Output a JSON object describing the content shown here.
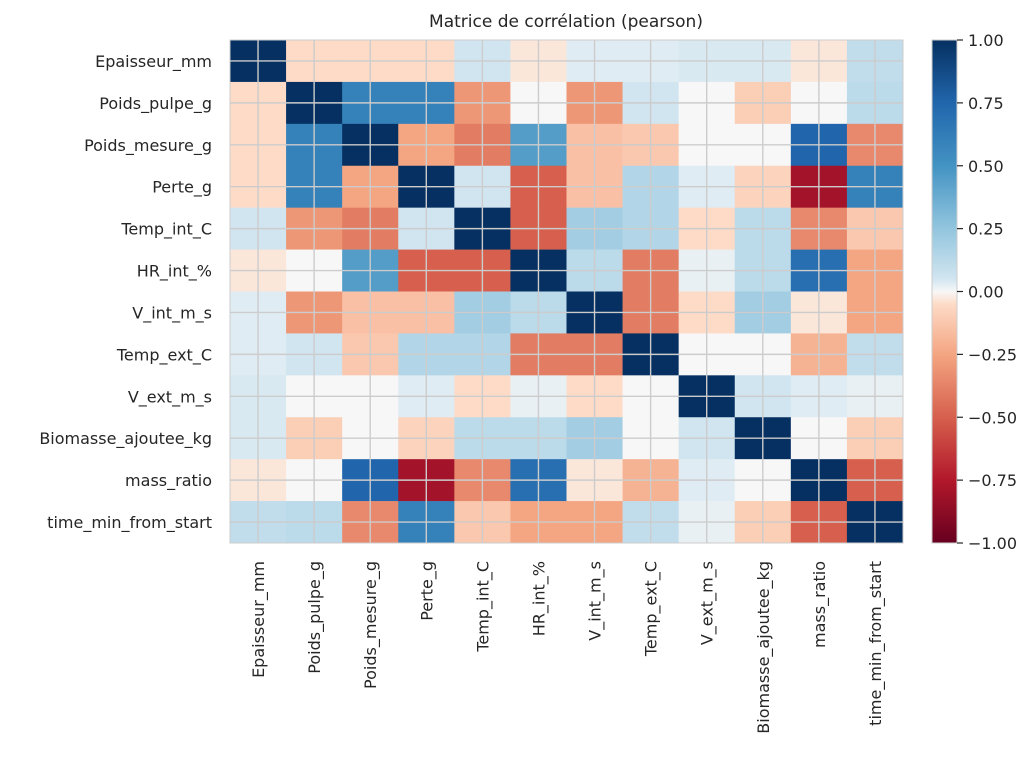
{
  "chart_data": {
    "type": "heatmap",
    "title": "Matrice de corrélation (pearson)",
    "variables": [
      "Epaisseur_mm",
      "Poids_pulpe_g",
      "Poids_mesure_g",
      "Perte_g",
      "Temp_int_C",
      "HR_int_%",
      "V_int_m_s",
      "Temp_ext_C",
      "V_ext_m_s",
      "Biomasse_ajoutee_kg",
      "mass_ratio",
      "time_min_from_start"
    ],
    "matrix": [
      [
        1.0,
        -0.05,
        -0.05,
        -0.05,
        0.05,
        -0.03,
        0.03,
        0.03,
        0.04,
        0.04,
        -0.03,
        0.1
      ],
      [
        -0.05,
        1.0,
        0.6,
        0.6,
        -0.3,
        0.0,
        -0.3,
        0.05,
        0.0,
        -0.1,
        0.0,
        0.12
      ],
      [
        -0.05,
        0.6,
        1.0,
        -0.25,
        -0.4,
        0.45,
        -0.15,
        -0.12,
        0.0,
        0.0,
        0.75,
        -0.35
      ],
      [
        -0.05,
        0.6,
        -0.25,
        1.0,
        0.05,
        -0.5,
        -0.15,
        0.15,
        0.03,
        -0.08,
        -0.8,
        0.6
      ],
      [
        0.05,
        -0.3,
        -0.4,
        0.05,
        1.0,
        -0.5,
        0.2,
        0.15,
        -0.05,
        0.12,
        -0.35,
        -0.12
      ],
      [
        -0.03,
        0.0,
        0.45,
        -0.5,
        -0.5,
        1.0,
        0.12,
        -0.4,
        0.02,
        0.12,
        0.7,
        -0.25
      ],
      [
        0.03,
        -0.3,
        -0.15,
        -0.15,
        0.2,
        0.12,
        1.0,
        -0.4,
        -0.05,
        0.2,
        -0.03,
        -0.25
      ],
      [
        0.03,
        0.05,
        -0.12,
        0.15,
        0.15,
        -0.4,
        -0.4,
        1.0,
        0.0,
        0.0,
        -0.2,
        0.1
      ],
      [
        0.04,
        0.0,
        0.0,
        0.03,
        -0.05,
        0.02,
        -0.05,
        0.0,
        1.0,
        0.05,
        0.03,
        0.02
      ],
      [
        0.04,
        -0.1,
        0.0,
        -0.08,
        0.12,
        0.12,
        0.2,
        0.0,
        0.05,
        1.0,
        0.0,
        -0.1
      ],
      [
        -0.03,
        0.0,
        0.75,
        -0.8,
        -0.35,
        0.7,
        -0.03,
        -0.2,
        0.03,
        0.0,
        1.0,
        -0.5
      ],
      [
        0.1,
        0.12,
        -0.35,
        0.6,
        -0.12,
        -0.25,
        -0.25,
        0.1,
        0.02,
        -0.1,
        -0.5,
        1.0
      ]
    ],
    "colorbar": {
      "range": [
        -1.0,
        1.0
      ],
      "ticks": [
        "1.00",
        "0.75",
        "0.50",
        "0.25",
        "0.00",
        "−0.25",
        "−0.50",
        "−0.75",
        "−1.00"
      ]
    },
    "grid": true
  }
}
